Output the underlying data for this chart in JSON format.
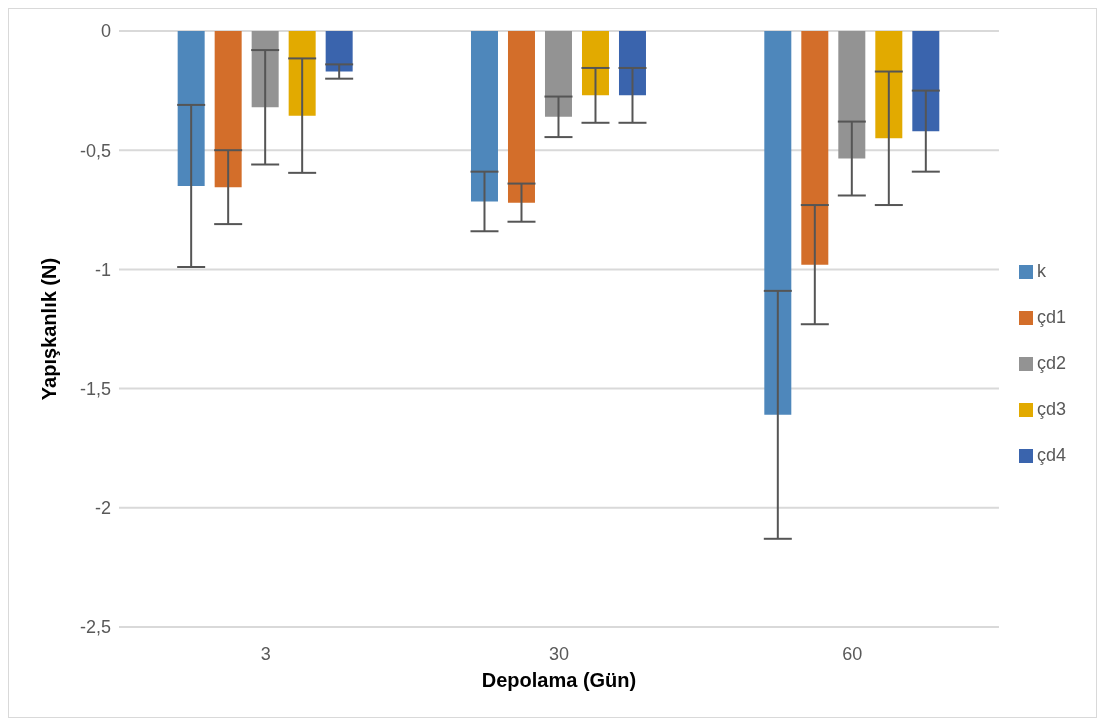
{
  "chart_data": {
    "type": "bar",
    "xlabel": "Depolama (Gün)",
    "ylabel": "Yapışkanlık (N)",
    "categories": [
      "3",
      "30",
      "60"
    ],
    "series": [
      {
        "name": "k",
        "color": "#4e87bb",
        "values": [
          -0.65,
          -0.715,
          -1.61
        ],
        "errors": [
          0.34,
          0.125,
          0.52
        ]
      },
      {
        "name": "çd1",
        "color": "#d36e2a",
        "values": [
          -0.655,
          -0.72,
          -0.98
        ],
        "errors": [
          0.155,
          0.08,
          0.25
        ]
      },
      {
        "name": "çd2",
        "color": "#939393",
        "values": [
          -0.32,
          -0.36,
          -0.535
        ],
        "errors": [
          0.24,
          0.085,
          0.155
        ]
      },
      {
        "name": "çd3",
        "color": "#e2aa00",
        "values": [
          -0.355,
          -0.27,
          -0.45
        ],
        "errors": [
          0.24,
          0.115,
          0.28
        ]
      },
      {
        "name": "çd4",
        "color": "#3a64ad",
        "values": [
          -0.17,
          -0.27,
          -0.42
        ],
        "errors": [
          0.03,
          0.115,
          0.17
        ]
      }
    ],
    "ylim": [
      -2.5,
      0
    ],
    "yticks": [
      {
        "value": -2.5,
        "label": "-2,5"
      },
      {
        "value": -2,
        "label": "-2"
      },
      {
        "value": -1.5,
        "label": "-1,5"
      },
      {
        "value": -1,
        "label": "-1"
      },
      {
        "value": -0.5,
        "label": "-0,5"
      },
      {
        "value": 0,
        "label": "0"
      }
    ],
    "grid": "y",
    "legend": "right"
  }
}
